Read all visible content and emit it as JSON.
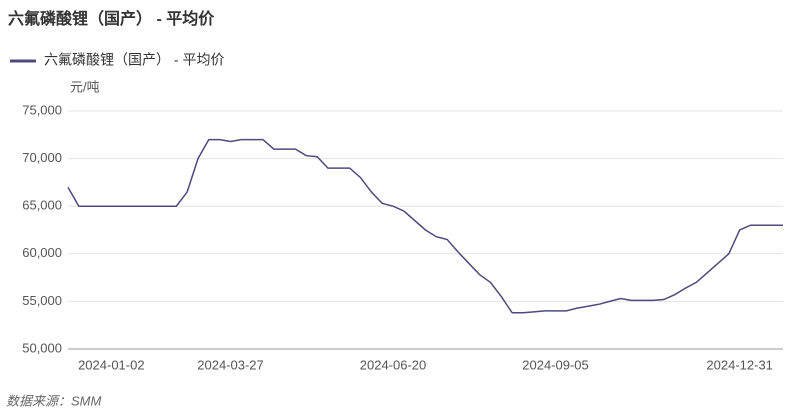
{
  "chart_data": {
    "type": "line",
    "title": "六氟磷酸锂（国产） - 平均价",
    "y_label": "元/吨",
    "source": "数据来源：SMM",
    "categories": [
      null,
      null,
      null,
      null,
      "2024-01-02",
      null,
      null,
      null,
      null,
      null,
      null,
      null,
      null,
      null,
      null,
      "2024-03-27",
      null,
      null,
      null,
      null,
      null,
      null,
      null,
      null,
      null,
      null,
      null,
      null,
      null,
      null,
      "2024-06-20",
      null,
      null,
      null,
      null,
      null,
      null,
      null,
      null,
      null,
      null,
      null,
      null,
      null,
      null,
      "2024-09-05",
      null,
      null,
      null,
      null,
      null,
      null,
      null,
      null,
      null,
      null,
      null,
      null,
      null,
      null,
      null,
      null,
      "2024-12-31",
      null,
      null,
      null,
      null
    ],
    "series": [
      {
        "name": "六氟磷酸锂（国产） - 平均价",
        "color": "#4e4a7e",
        "values": [
          67000,
          65000,
          65000,
          65000,
          65000,
          65000,
          65000,
          65000,
          65000,
          65000,
          65000,
          66500,
          70000,
          72000,
          72000,
          71800,
          72000,
          72000,
          72000,
          71000,
          71000,
          71000,
          70300,
          70200,
          69000,
          69000,
          69000,
          68000,
          66500,
          65300,
          65000,
          64500,
          63500,
          62500,
          61800,
          61500,
          60200,
          59000,
          57800,
          57000,
          55500,
          53800,
          53800,
          53900,
          54000,
          54000,
          54000,
          54300,
          54500,
          54700,
          55000,
          55300,
          55100,
          55100,
          55100,
          55200,
          55700,
          56400,
          57000,
          58000,
          59000,
          60000,
          62500,
          63000,
          63000,
          63000,
          63000
        ]
      }
    ],
    "ylim": [
      50000,
      75000
    ],
    "yticks": [
      {
        "value": 50000,
        "label": "50,000"
      },
      {
        "value": 55000,
        "label": "55,000"
      },
      {
        "value": 60000,
        "label": "60,000"
      },
      {
        "value": 65000,
        "label": "65,000"
      },
      {
        "value": 70000,
        "label": "70,000"
      },
      {
        "value": 75000,
        "label": "75,000"
      }
    ],
    "grid": true
  }
}
